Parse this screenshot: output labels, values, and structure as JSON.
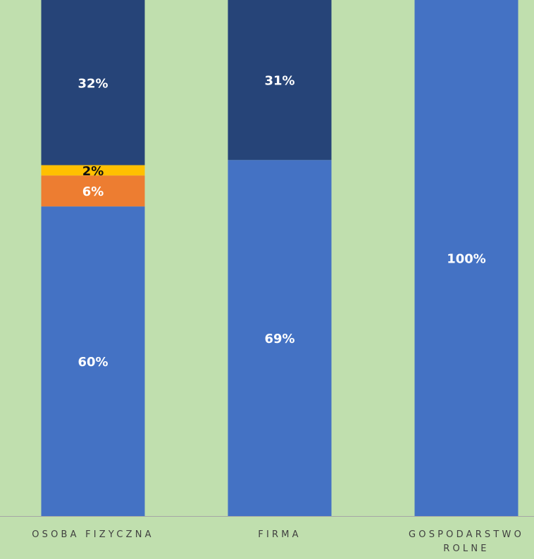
{
  "chart_data": {
    "type": "stacked_bar",
    "categories": [
      "OSOBA FIZYCZNA",
      "FIRMA",
      "GOSPODARSTWO ROLNE"
    ],
    "series": [
      {
        "color": "#4472c4",
        "values": [
          60,
          69,
          100
        ],
        "value_labels": [
          "60%",
          "69%",
          "100%"
        ]
      },
      {
        "color": "#ed7d31",
        "values": [
          6,
          0,
          0
        ],
        "value_labels": [
          "6%",
          null,
          null
        ]
      },
      {
        "color": "#ffc000",
        "values": [
          2,
          0,
          0
        ],
        "value_labels": [
          "2%",
          null,
          null
        ]
      },
      {
        "color": "#264478",
        "values": [
          32,
          31,
          0
        ],
        "value_labels": [
          "32%",
          "31%",
          null
        ]
      }
    ],
    "ylim": [
      0,
      100
    ],
    "background": "#c0dfae",
    "axis_color": "#a6a6a6"
  }
}
